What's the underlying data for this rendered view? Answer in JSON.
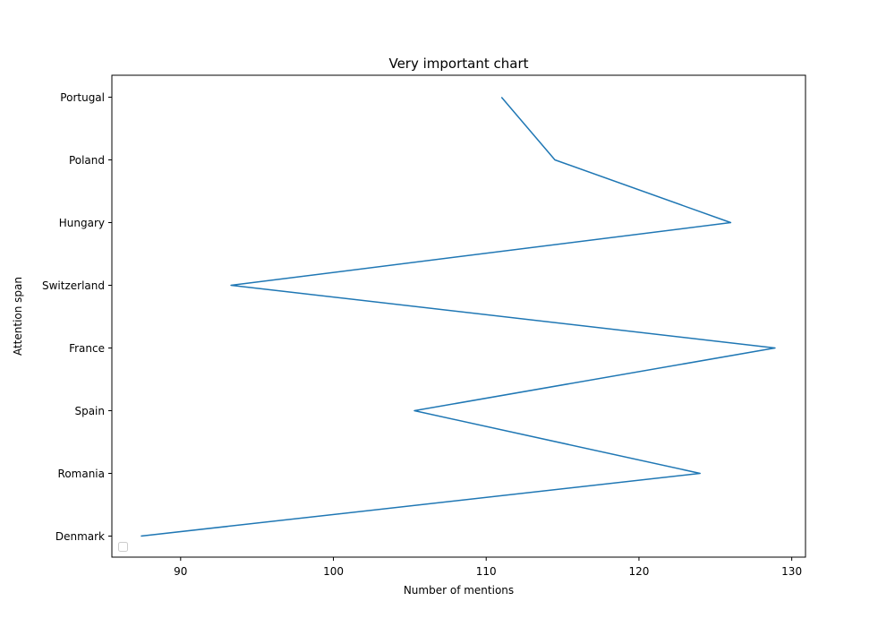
{
  "chart_data": {
    "type": "line",
    "title": "Very important chart",
    "xlabel": "Number of mentions",
    "ylabel": "Attention span",
    "categories": [
      "Denmark",
      "Romania",
      "Spain",
      "France",
      "Switzerland",
      "Hungary",
      "Poland",
      "Portugal"
    ],
    "x_values": [
      87.4,
      124.0,
      105.3,
      128.9,
      93.3,
      126.0,
      114.5,
      111.0
    ],
    "xlim": [
      85.5,
      130.9
    ],
    "x_ticks": [
      90,
      100,
      110,
      120,
      130
    ],
    "series_color": "#1f77b4",
    "grid": false,
    "legend": {
      "placement": "lower-left",
      "entries": []
    }
  }
}
